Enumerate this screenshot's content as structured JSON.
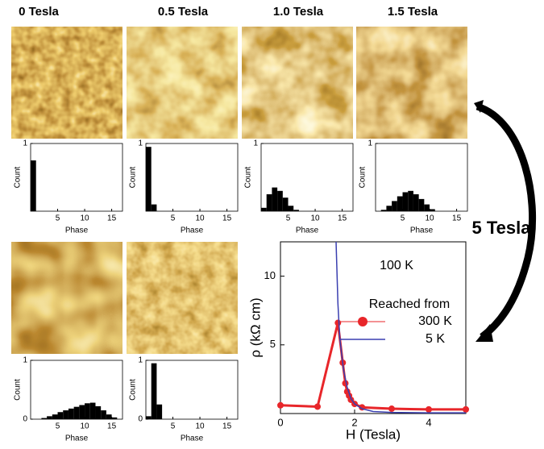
{
  "annotation": "5 Tesla",
  "chart_data": [
    {
      "type": "histogram",
      "title": "0 Tesla",
      "xlabel": "Phase",
      "ylabel": "Count",
      "bins": [
        0,
        1,
        2,
        3,
        4,
        5,
        6,
        7,
        8,
        9,
        10,
        11,
        12,
        13,
        14,
        15,
        16
      ],
      "values": [
        0.75,
        0,
        0,
        0,
        0,
        0,
        0,
        0,
        0,
        0,
        0,
        0,
        0,
        0,
        0,
        0
      ],
      "xlim": [
        0,
        17
      ],
      "xticks": [
        5,
        10,
        15
      ],
      "ylim": [
        0,
        1
      ],
      "yticks": [
        1
      ],
      "color": "#000000"
    },
    {
      "type": "histogram",
      "title": "0.5 Tesla",
      "xlabel": "Phase",
      "ylabel": "Count",
      "bins": [
        0,
        1,
        2,
        3,
        4,
        5,
        6,
        7,
        8,
        9,
        10,
        11,
        12,
        13,
        14,
        15,
        16
      ],
      "values": [
        0.95,
        0.1,
        0,
        0,
        0,
        0,
        0,
        0,
        0,
        0,
        0,
        0,
        0,
        0,
        0,
        0
      ],
      "xlim": [
        0,
        17
      ],
      "xticks": [
        5,
        10,
        15
      ],
      "ylim": [
        0,
        1
      ],
      "yticks": [
        1
      ],
      "color": "#000000"
    },
    {
      "type": "histogram",
      "title": "1.0 Tesla",
      "xlabel": "Phase",
      "ylabel": "Count",
      "bins": [
        0,
        1,
        2,
        3,
        4,
        5,
        6,
        7,
        8,
        9,
        10,
        11,
        12,
        13,
        14,
        15,
        16
      ],
      "values": [
        0.05,
        0.25,
        0.35,
        0.3,
        0.2,
        0.08,
        0.02,
        0,
        0,
        0,
        0,
        0,
        0,
        0,
        0,
        0
      ],
      "xlim": [
        0,
        17
      ],
      "xticks": [
        5,
        10,
        15
      ],
      "ylim": [
        0,
        1
      ],
      "yticks": [
        1
      ],
      "color": "#000000"
    },
    {
      "type": "histogram",
      "title": "1.5 Tesla",
      "xlabel": "Phase",
      "ylabel": "Count",
      "bins": [
        0,
        1,
        2,
        3,
        4,
        5,
        6,
        7,
        8,
        9,
        10,
        11,
        12,
        13,
        14,
        15,
        16
      ],
      "values": [
        0,
        0.02,
        0.08,
        0.15,
        0.22,
        0.28,
        0.3,
        0.25,
        0.18,
        0.1,
        0.03,
        0,
        0,
        0,
        0,
        0
      ],
      "xlim": [
        0,
        17
      ],
      "xticks": [
        5,
        10,
        15
      ],
      "ylim": [
        0,
        1
      ],
      "yticks": [
        1
      ],
      "color": "#000000"
    },
    {
      "type": "histogram",
      "xlabel": "Phase",
      "ylabel": "Count",
      "bins": [
        0,
        1,
        2,
        3,
        4,
        5,
        6,
        7,
        8,
        9,
        10,
        11,
        12,
        13,
        14,
        15,
        16
      ],
      "values": [
        0,
        0,
        0.02,
        0.05,
        0.08,
        0.12,
        0.15,
        0.18,
        0.21,
        0.24,
        0.27,
        0.28,
        0.22,
        0.15,
        0.08,
        0.03
      ],
      "xlim": [
        0,
        17
      ],
      "xticks": [
        5,
        10,
        15
      ],
      "ylim": [
        0,
        1
      ],
      "yticks": [
        0,
        1
      ],
      "color": "#000000"
    },
    {
      "type": "histogram",
      "xlabel": "Phase",
      "ylabel": "Count",
      "bins": [
        0,
        1,
        2,
        3,
        4,
        5,
        6,
        7,
        8,
        9,
        10,
        11,
        12,
        13,
        14,
        15,
        16
      ],
      "values": [
        0.05,
        0.95,
        0.25,
        0,
        0,
        0,
        0,
        0,
        0,
        0,
        0,
        0,
        0,
        0,
        0,
        0
      ],
      "xlim": [
        0,
        17
      ],
      "xticks": [
        5,
        10,
        15
      ],
      "ylim": [
        0,
        1
      ],
      "yticks": [
        0,
        1
      ],
      "color": "#000000"
    },
    {
      "type": "line",
      "xlabel": "H (Tesla)",
      "ylabel": "ρ (kΩ cm)",
      "annotation": "100 K",
      "legend_title": "Reached from",
      "xlim": [
        0,
        5
      ],
      "ylim": [
        0,
        12.5
      ],
      "xticks": [
        0,
        2,
        4
      ],
      "yticks": [
        5,
        10
      ],
      "series": [
        {
          "name": "300 K",
          "color": "#e8262a",
          "marker": true,
          "x": [
            0,
            1,
            1.55,
            1.68,
            1.75,
            1.8,
            1.85,
            1.9,
            2.0,
            2.2,
            3,
            4,
            5
          ],
          "values": [
            0.6,
            0.5,
            6.6,
            3.7,
            2.2,
            1.6,
            1.3,
            1.0,
            0.7,
            0.45,
            0.35,
            0.3,
            0.3
          ]
        },
        {
          "name": "5 K",
          "color": "#3a3fb0",
          "marker": false,
          "x": [
            1.5,
            1.55,
            1.6,
            1.7,
            1.8,
            1.9,
            2.0,
            2.2,
            2.5,
            3,
            4,
            5
          ],
          "values": [
            12.5,
            8,
            5.5,
            3.2,
            1.9,
            1.1,
            0.7,
            0.35,
            0.15,
            0.08,
            0.05,
            0.05
          ]
        }
      ]
    }
  ]
}
